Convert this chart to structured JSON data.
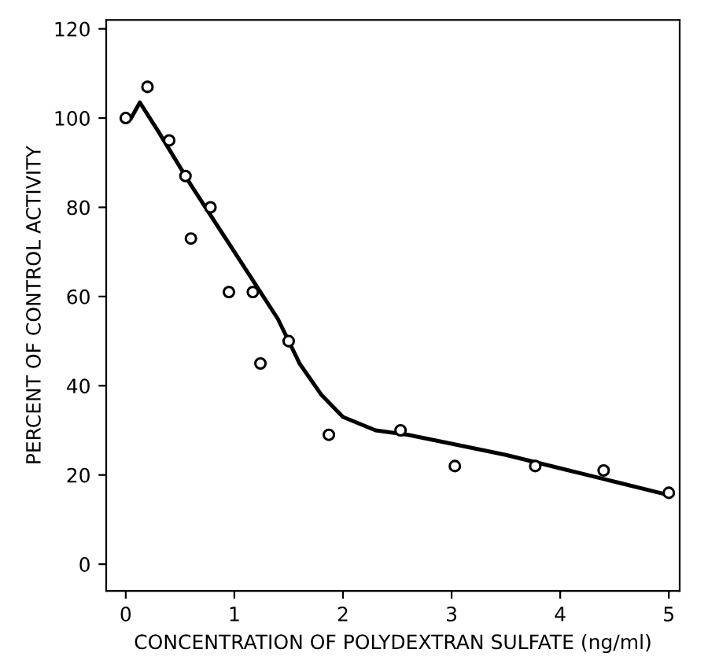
{
  "chart_data": {
    "type": "scatter",
    "xlabel": "CONCENTRATION OF POLYDEXTRAN SULFATE (ng/ml)",
    "ylabel": "PERCENT OF CONTROL ACTIVITY",
    "xlim": [
      -0.18,
      5.1
    ],
    "ylim": [
      -6,
      122
    ],
    "xticks": [
      0,
      1,
      2,
      3,
      4,
      5
    ],
    "yticks": [
      0,
      20,
      40,
      60,
      80,
      100,
      120
    ],
    "grid": false,
    "legend": false,
    "series": [
      {
        "color": "#000000",
        "marker": "circle",
        "x": [
          0,
          0.2,
          0.4,
          0.55,
          0.6,
          0.78,
          0.95,
          1.17,
          1.24,
          1.5,
          1.87,
          2.53,
          3.03,
          3.77,
          4.4,
          5.0
        ],
        "values": [
          100,
          107,
          95,
          87,
          73,
          80,
          61,
          61,
          45,
          50,
          29,
          30,
          22,
          22,
          21,
          16
        ]
      },
      {
        "type": "line",
        "color": "#000000",
        "marker": "none",
        "line_style": "solid",
        "x": [
          0.05,
          0.13,
          0.3,
          0.6,
          1.0,
          1.4,
          1.6,
          1.8,
          2.0,
          2.3,
          2.6,
          3.0,
          3.5,
          4.0,
          4.5,
          5.0
        ],
        "values": [
          100,
          103.5,
          97,
          85,
          70,
          55,
          45,
          38,
          33,
          30,
          29,
          27,
          24.5,
          21.5,
          18.5,
          15.5
        ]
      }
    ]
  }
}
